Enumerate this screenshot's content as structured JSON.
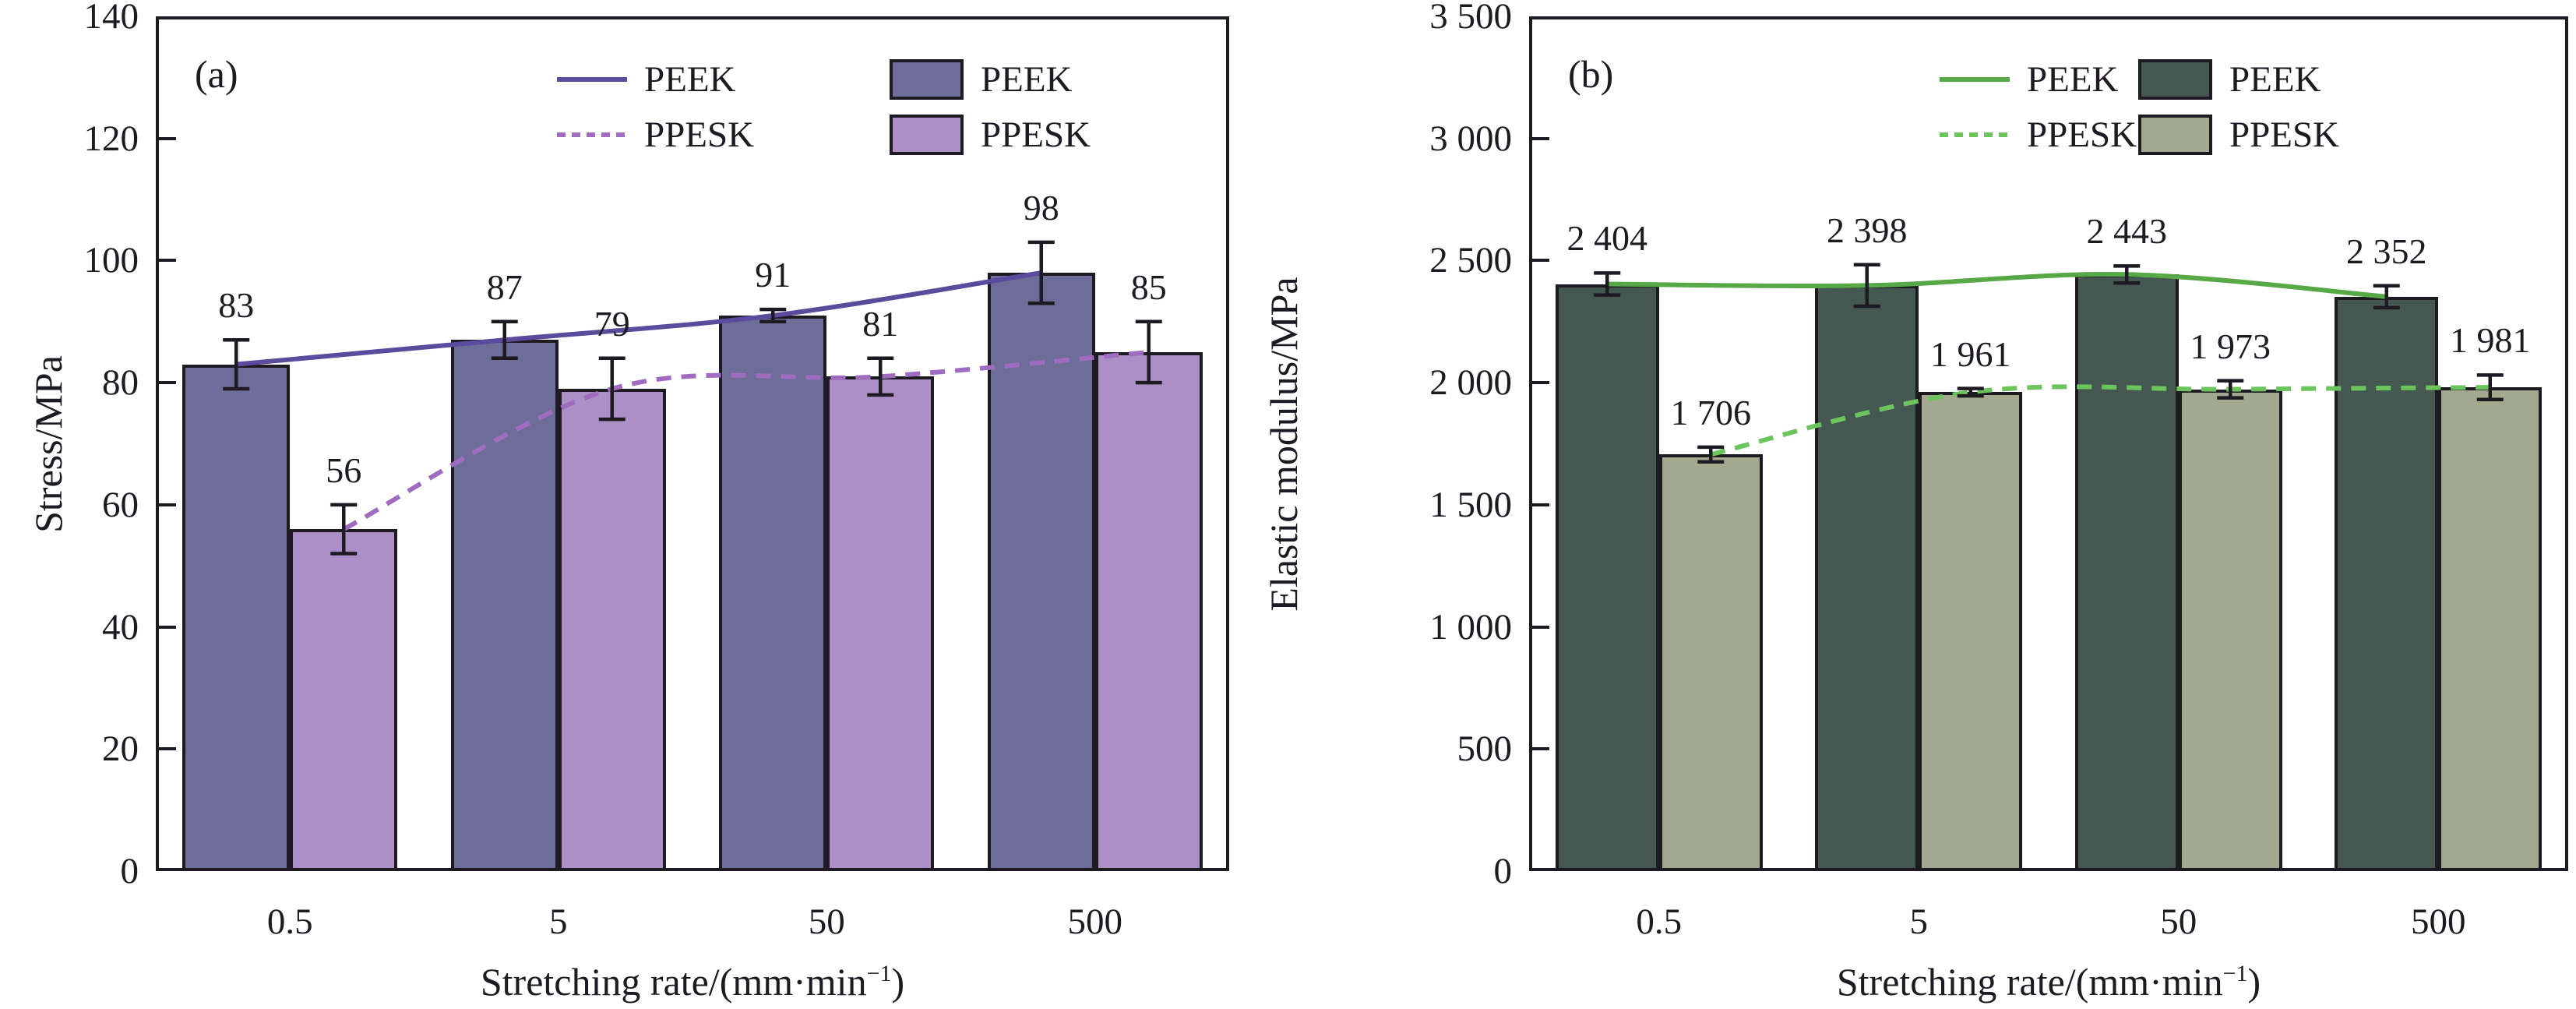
{
  "style": {
    "axis_color": "#1d1a22",
    "text_color": "#1d1a22",
    "background": "#ffffff"
  },
  "chart_data": [
    {
      "type": "bar",
      "panel_label": "(a)",
      "title": "",
      "xlabel": {
        "pre": "Stretching rate/(mm·min",
        "sup": "−1",
        "post": ")"
      },
      "ylabel": "Stress/MPa",
      "ylim": [
        0,
        140
      ],
      "grid": false,
      "legend_position": "top-right-inside",
      "yticks": [
        {
          "v": 140,
          "label": "140"
        },
        {
          "v": 120,
          "label": "120"
        },
        {
          "v": 100,
          "label": "100"
        },
        {
          "v": 80,
          "label": "80"
        },
        {
          "v": 60,
          "label": "60"
        },
        {
          "v": 40,
          "label": "40"
        },
        {
          "v": 20,
          "label": "20"
        },
        {
          "v": 0,
          "label": "0"
        }
      ],
      "categories": [
        "0.5",
        "5",
        "50",
        "500"
      ],
      "series": [
        {
          "name": "PEEK",
          "bar_color": "#6e6c99",
          "line_color": "#5a4b9d",
          "line_dash": "solid",
          "values": [
            83,
            87,
            91,
            98
          ],
          "value_labels": [
            "83",
            "87",
            "91",
            "98"
          ],
          "errors": [
            4,
            3,
            1,
            5
          ]
        },
        {
          "name": "PPESK",
          "bar_color": "#ab8fc6",
          "line_color": "#a06cc0",
          "line_dash": "dashed",
          "values": [
            56,
            79,
            81,
            85
          ],
          "value_labels": [
            "56",
            "79",
            "81",
            "85"
          ],
          "errors": [
            4,
            5,
            3,
            5
          ]
        }
      ],
      "legend": {
        "line_entries": [
          {
            "label": "PEEK"
          },
          {
            "label": "PPESK"
          }
        ],
        "swatch_entries": [
          {
            "label": "PEEK"
          },
          {
            "label": "PPESK"
          }
        ]
      }
    },
    {
      "type": "bar",
      "panel_label": "(b)",
      "title": "",
      "xlabel": {
        "pre": "Stretching rate/(mm·min",
        "sup": "−1",
        "post": ")"
      },
      "ylabel": "Elastic modulus/MPa",
      "ylim": [
        0,
        3500
      ],
      "grid": false,
      "legend_position": "top-center-inside",
      "yticks": [
        {
          "v": 3500,
          "label": "3 500"
        },
        {
          "v": 3000,
          "label": "3 000"
        },
        {
          "v": 2500,
          "label": "2 500"
        },
        {
          "v": 2000,
          "label": "2 000"
        },
        {
          "v": 1500,
          "label": "1 500"
        },
        {
          "v": 1000,
          "label": "1 000"
        },
        {
          "v": 500,
          "label": "500"
        },
        {
          "v": 0,
          "label": "0"
        }
      ],
      "categories": [
        "0.5",
        "5",
        "50",
        "500"
      ],
      "series": [
        {
          "name": "PEEK",
          "bar_color": "#455751",
          "line_color": "#56a946",
          "line_dash": "solid",
          "values": [
            2404,
            2398,
            2443,
            2352
          ],
          "value_labels": [
            "2 404",
            "2 398",
            "2 443",
            "2 352"
          ],
          "errors": [
            45,
            85,
            35,
            45
          ]
        },
        {
          "name": "PPESK",
          "bar_color": "#a2a98e",
          "line_color": "#6cc45c",
          "line_dash": "dashed",
          "values": [
            1706,
            1961,
            1973,
            1981
          ],
          "value_labels": [
            "1 706",
            "1 961",
            "1 973",
            "1 981"
          ],
          "errors": [
            30,
            15,
            35,
            50
          ]
        }
      ],
      "legend": {
        "line_entries": [
          {
            "label": "PEEK"
          },
          {
            "label": "PPESK"
          }
        ],
        "swatch_entries": [
          {
            "label": "PEEK"
          },
          {
            "label": "PPESK"
          }
        ]
      }
    }
  ]
}
